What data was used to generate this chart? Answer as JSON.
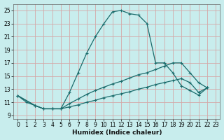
{
  "xlabel": "Humidex (Indice chaleur)",
  "bg_color": "#c8eded",
  "grid_color": "#d4a8a8",
  "line_color": "#1a6b6b",
  "xlim": [
    -0.5,
    23.5
  ],
  "ylim": [
    8.5,
    26.0
  ],
  "xticks": [
    0,
    1,
    2,
    3,
    4,
    5,
    6,
    7,
    8,
    9,
    10,
    11,
    12,
    13,
    14,
    15,
    16,
    17,
    18,
    19,
    20,
    21,
    22,
    23
  ],
  "yticks": [
    9,
    11,
    13,
    15,
    17,
    19,
    21,
    23,
    25
  ],
  "series": [
    {
      "x": [
        0,
        1,
        2,
        3,
        4,
        5,
        6,
        7,
        8,
        9,
        10,
        11,
        12,
        13,
        14,
        15,
        16,
        17
      ],
      "y": [
        12.0,
        11.0,
        10.5,
        10.0,
        10.0,
        10.0,
        12.5,
        15.5,
        18.5,
        21.0,
        23.0,
        24.8,
        25.0,
        24.5,
        24.3,
        23.0,
        17.0,
        17.0
      ]
    },
    {
      "x": [
        17,
        18,
        19,
        20,
        21,
        22
      ],
      "y": [
        17.0,
        15.5,
        13.5,
        12.8,
        12.1,
        13.2
      ]
    },
    {
      "x": [
        0,
        2,
        3,
        4,
        5,
        6,
        7,
        8,
        9,
        10,
        11,
        12,
        13,
        14,
        15,
        16,
        17,
        18,
        19,
        20,
        21,
        22
      ],
      "y": [
        12.0,
        10.5,
        10.0,
        10.0,
        10.0,
        10.8,
        11.5,
        12.2,
        12.8,
        13.3,
        13.8,
        14.2,
        14.7,
        15.2,
        15.5,
        16.0,
        16.5,
        17.0,
        17.0,
        15.5,
        14.0,
        13.2
      ]
    },
    {
      "x": [
        0,
        2,
        3,
        4,
        5,
        6,
        7,
        8,
        9,
        10,
        11,
        12,
        13,
        14,
        15,
        16,
        17,
        18,
        19,
        20,
        21,
        22
      ],
      "y": [
        12.0,
        10.5,
        10.0,
        10.0,
        10.0,
        10.3,
        10.6,
        11.0,
        11.3,
        11.7,
        12.0,
        12.3,
        12.6,
        13.0,
        13.3,
        13.7,
        14.0,
        14.3,
        14.6,
        14.0,
        12.5,
        13.2
      ]
    }
  ]
}
